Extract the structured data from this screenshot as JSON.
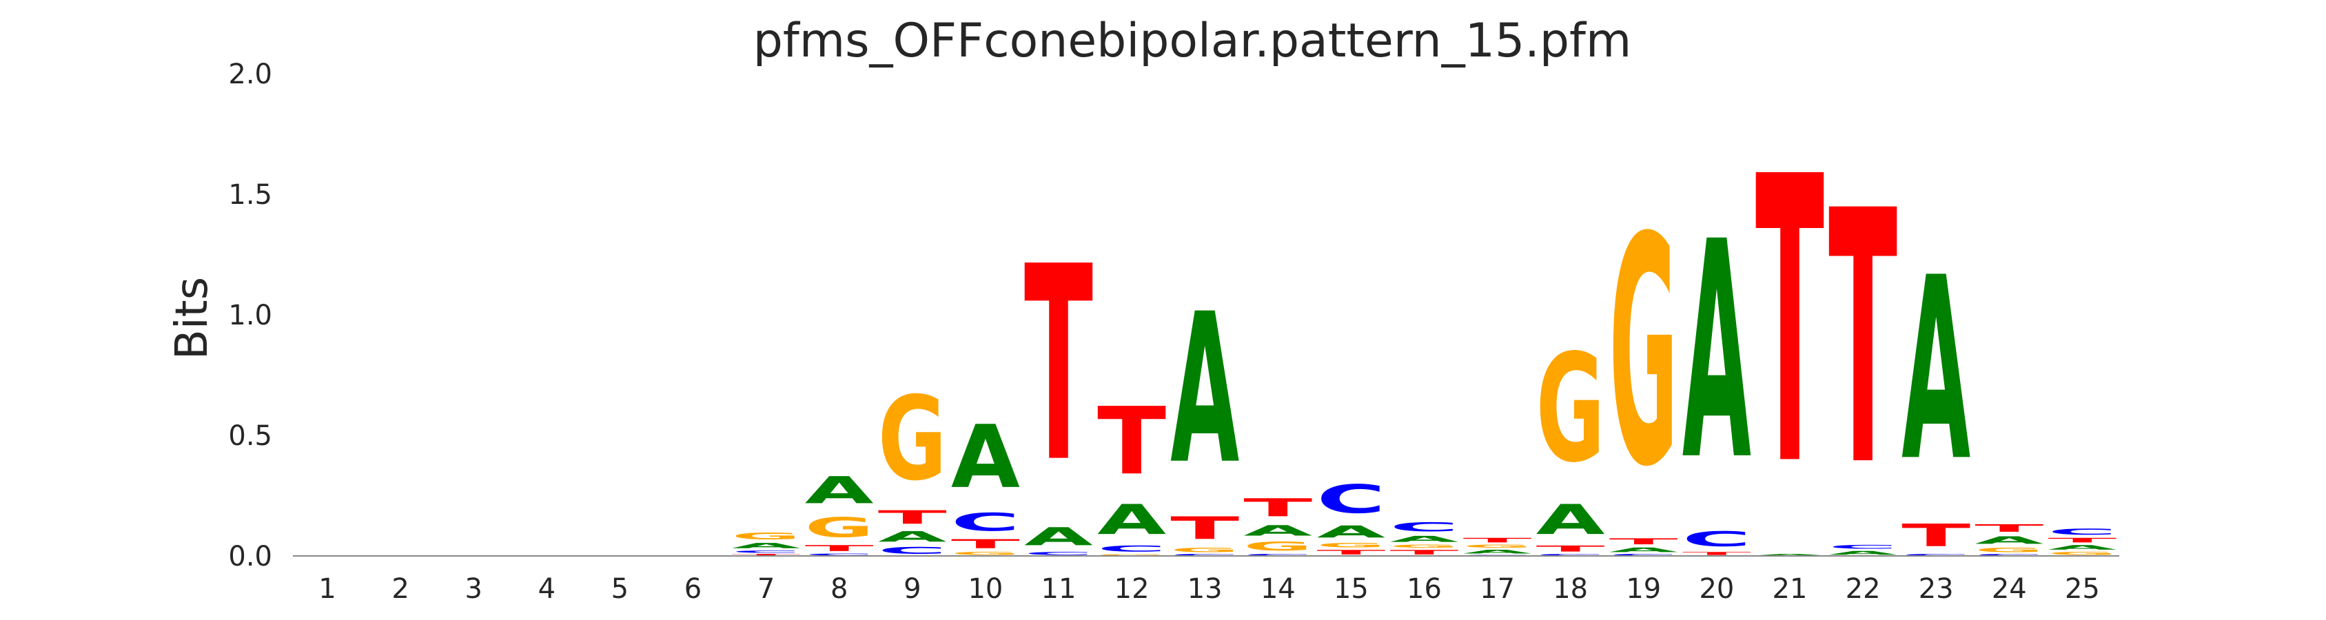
{
  "chart_data": {
    "type": "sequence-logo",
    "title": "pfms_OFFconebipolar.pattern_15.pfm",
    "ylabel": "Bits",
    "xlabel": "",
    "ylim": [
      0,
      2.0
    ],
    "yticks": [
      "0.0",
      "0.5",
      "1.0",
      "1.5",
      "2.0"
    ],
    "positions": [
      "1",
      "2",
      "3",
      "4",
      "5",
      "6",
      "7",
      "8",
      "9",
      "10",
      "11",
      "12",
      "13",
      "14",
      "15",
      "16",
      "17",
      "18",
      "19",
      "20",
      "21",
      "22",
      "23",
      "24",
      "25"
    ],
    "colors": {
      "A": "#008000",
      "C": "#0000ff",
      "G": "#ffa500",
      "T": "#ff0000"
    },
    "grid": false,
    "legend": "none",
    "columns": [
      [],
      [],
      [],
      [],
      [],
      [],
      [
        [
          "T",
          0.01
        ],
        [
          "C",
          0.015
        ],
        [
          "A",
          0.035
        ],
        [
          "G",
          0.045
        ]
      ],
      [
        [
          "C",
          0.012
        ],
        [
          "T",
          0.04
        ],
        [
          "G",
          0.13
        ],
        [
          "A",
          0.18
        ]
      ],
      [
        [
          "C",
          0.045
        ],
        [
          "A",
          0.07
        ],
        [
          "T",
          0.09
        ],
        [
          "G",
          0.56
        ]
      ],
      [
        [
          "G",
          0.02
        ],
        [
          "T",
          0.06
        ],
        [
          "C",
          0.12
        ],
        [
          "A",
          0.42
        ]
      ],
      [
        [
          "C",
          0.02
        ],
        [
          "A",
          0.12
        ],
        [
          "T",
          1.3
        ]
      ],
      [
        [
          "G",
          0.01
        ],
        [
          "C",
          0.04
        ],
        [
          "A",
          0.2
        ],
        [
          "T",
          0.45
        ]
      ],
      [
        [
          "C",
          0.01
        ],
        [
          "G",
          0.03
        ],
        [
          "T",
          0.15
        ],
        [
          "A",
          1.0
        ]
      ],
      [
        [
          "C",
          0.01
        ],
        [
          "G",
          0.06
        ],
        [
          "A",
          0.07
        ],
        [
          "T",
          0.12
        ]
      ],
      [
        [
          "T",
          0.03
        ],
        [
          "G",
          0.03
        ],
        [
          "A",
          0.08
        ],
        [
          "C",
          0.19
        ]
      ],
      [
        [
          "T",
          0.03
        ],
        [
          "G",
          0.02
        ],
        [
          "A",
          0.04
        ],
        [
          "C",
          0.06
        ]
      ],
      [
        [
          "C",
          0.005
        ],
        [
          "A",
          0.025
        ],
        [
          "G",
          0.02
        ],
        [
          "T",
          0.03
        ]
      ],
      [
        [
          "C",
          0.01
        ],
        [
          "T",
          0.04
        ],
        [
          "A",
          0.2
        ],
        [
          "G",
          0.72
        ]
      ],
      [
        [
          "C",
          0.01
        ],
        [
          "A",
          0.03
        ],
        [
          "T",
          0.04
        ],
        [
          "G",
          1.52
        ]
      ],
      [
        [
          "T",
          0.02
        ],
        [
          "C",
          0.1
        ],
        [
          "A",
          1.45
        ]
      ],
      [
        [
          "A",
          0.01
        ],
        [
          "T",
          1.91
        ]
      ],
      [
        [
          "A",
          0.025
        ],
        [
          "C",
          0.025
        ],
        [
          "T",
          1.69
        ]
      ],
      [
        [
          "C",
          0.01
        ],
        [
          "T",
          0.15
        ],
        [
          "A",
          1.22
        ]
      ],
      [
        [
          "C",
          0.01
        ],
        [
          "G",
          0.03
        ],
        [
          "A",
          0.05
        ],
        [
          "T",
          0.05
        ]
      ],
      [
        [
          "G",
          0.02
        ],
        [
          "A",
          0.03
        ],
        [
          "T",
          0.03
        ],
        [
          "C",
          0.04
        ]
      ]
    ]
  }
}
